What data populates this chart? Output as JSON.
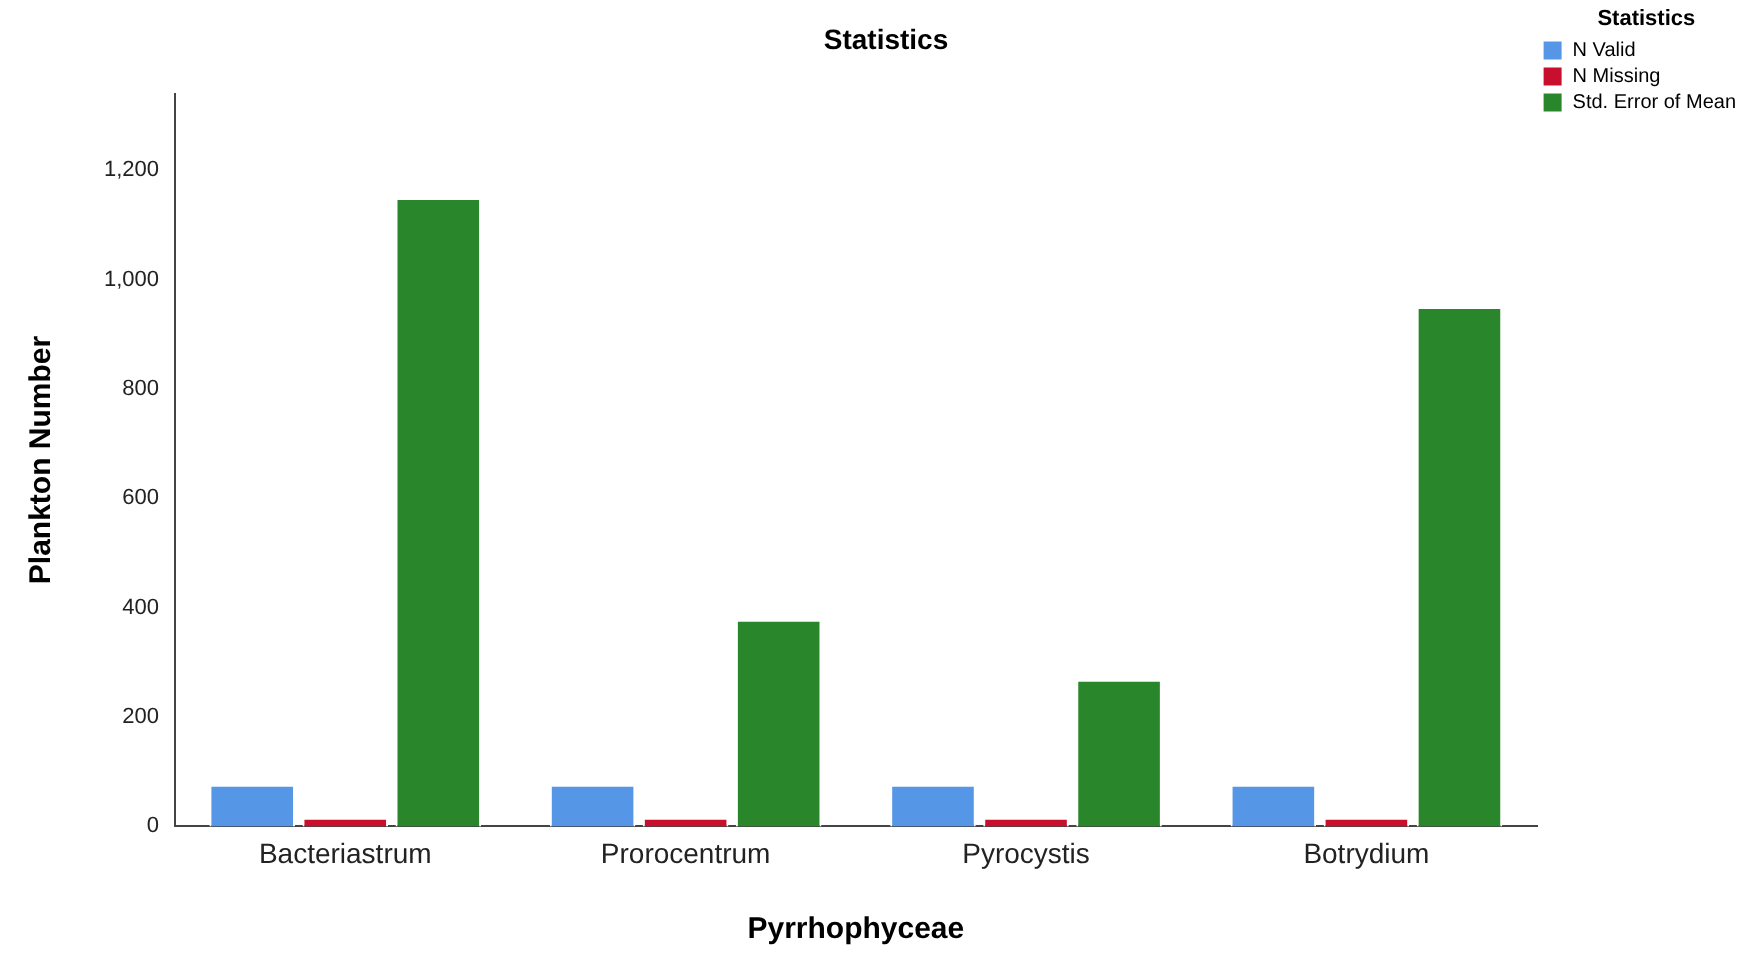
{
  "chart_data": {
    "type": "bar",
    "title": "Statistics",
    "xlabel": "Pyrrhophyceae",
    "ylabel": "Plankton Number",
    "legend_title": "Statistics",
    "legend": "top right",
    "grid": false,
    "categories": [
      "Bacteriastrum",
      "Prorocentrum",
      "Pyrocystis",
      "Botrydium"
    ],
    "series": [
      {
        "name": "N Valid",
        "color": "#5596e6",
        "values": [
          76,
          76,
          76,
          76
        ]
      },
      {
        "name": "N Missing",
        "color": "#c8102e",
        "values": [
          16,
          16,
          16,
          16
        ]
      },
      {
        "name": "Std. Error of Mean",
        "color": "#2a862a",
        "values": [
          1149,
          378,
          268,
          950
        ]
      }
    ],
    "ylim": [
      0,
      1340
    ],
    "yticks": [
      {
        "value": 0,
        "label": "0"
      },
      {
        "value": 200,
        "label": "200"
      },
      {
        "value": 400,
        "label": "400"
      },
      {
        "value": 600,
        "label": "600"
      },
      {
        "value": 800,
        "label": "800"
      },
      {
        "value": 1000,
        "label": "1,000"
      },
      {
        "value": 1200,
        "label": "1,200"
      }
    ]
  }
}
